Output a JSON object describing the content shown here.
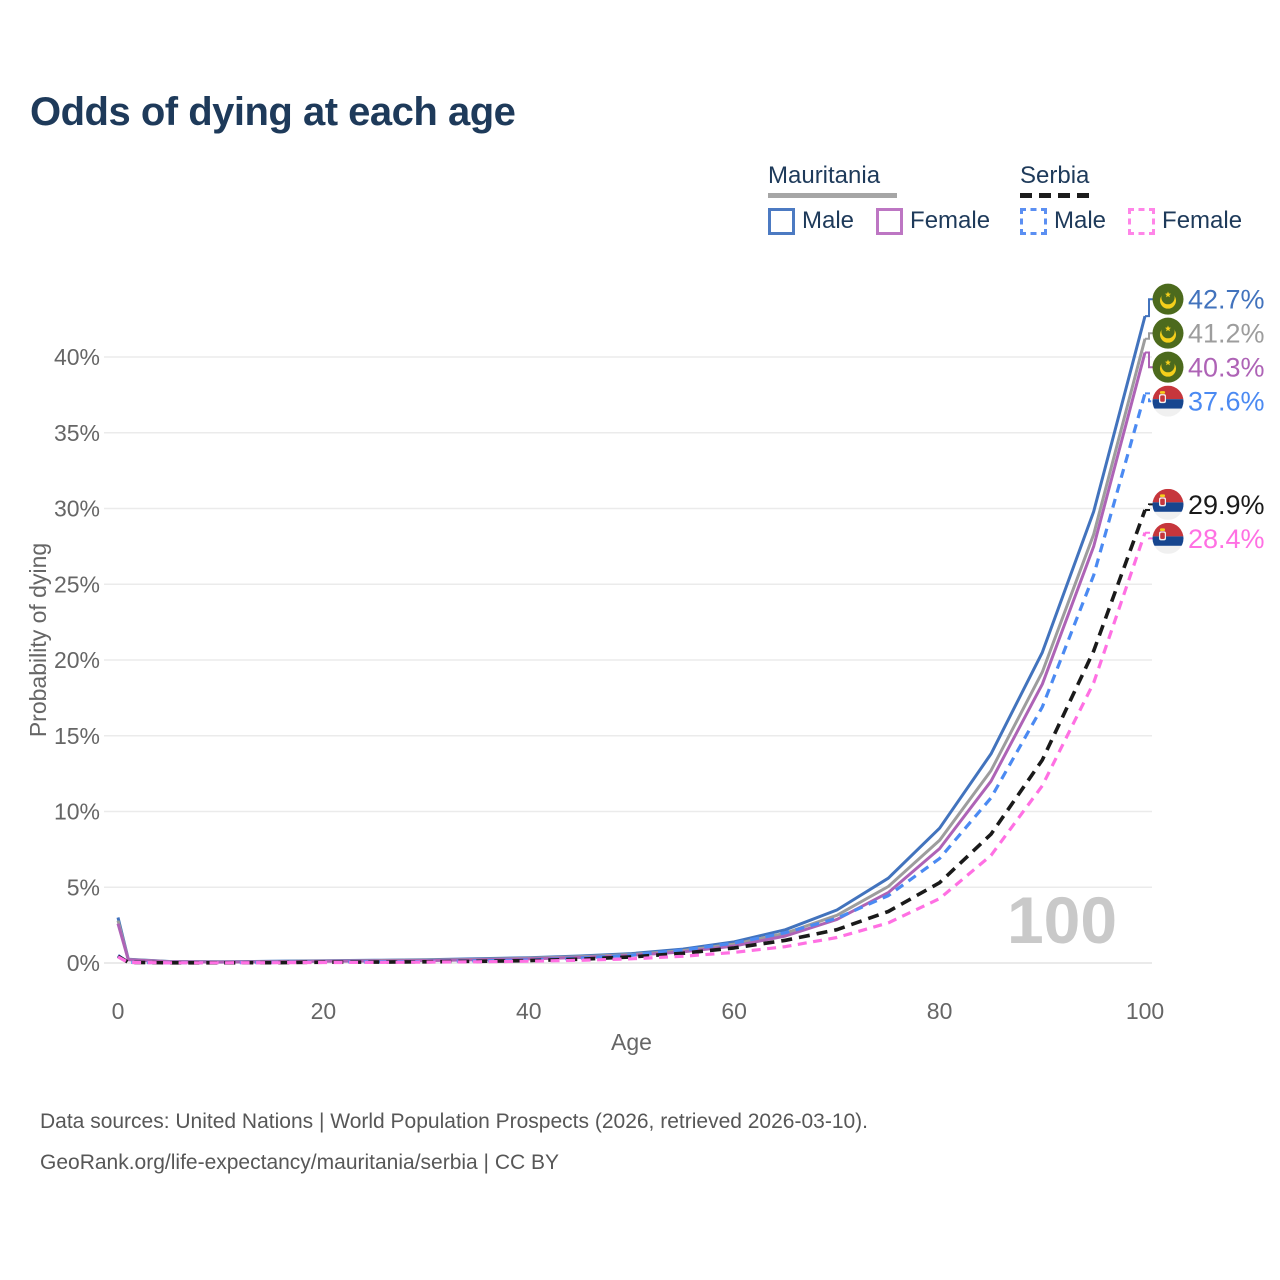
{
  "title": "Odds of dying at each age",
  "legend": {
    "groups": [
      {
        "label": "Mauritania",
        "line_style": "solid",
        "underline_color": "#a6a6a6",
        "items": [
          {
            "label": "Male",
            "color": "#4c7ac2"
          },
          {
            "label": "Female",
            "color": "#bd76c3"
          }
        ]
      },
      {
        "label": "Serbia",
        "line_style": "dashed",
        "underline_color": "#1c1c1c",
        "items": [
          {
            "label": "Male",
            "color": "#5b8ff2"
          },
          {
            "label": "Female",
            "color": "#ff85e8"
          }
        ]
      }
    ]
  },
  "chart_data": {
    "type": "line",
    "title": "Odds of dying at each age",
    "xlabel": "Age",
    "ylabel": "Probability of dying",
    "xlim": [
      0,
      100
    ],
    "ylim": [
      0,
      44
    ],
    "x_ticks": [
      0,
      20,
      40,
      60,
      80,
      100
    ],
    "y_ticks": [
      0,
      5,
      10,
      15,
      20,
      25,
      30,
      35,
      40
    ],
    "y_tick_suffix": "%",
    "grid": "horizontal",
    "watermark": "100",
    "x": [
      0,
      1,
      5,
      10,
      15,
      20,
      25,
      30,
      35,
      40,
      45,
      50,
      55,
      60,
      65,
      70,
      75,
      80,
      85,
      90,
      95,
      100
    ],
    "series": [
      {
        "name": "Mauritania Male",
        "country": "Mauritania",
        "sex": "Male",
        "color": "#4273bd",
        "dash": "solid",
        "flag": "mauritania",
        "end_label": "42.7%",
        "end_value": 42.7,
        "values": [
          3.0,
          0.25,
          0.1,
          0.08,
          0.11,
          0.15,
          0.18,
          0.22,
          0.28,
          0.35,
          0.46,
          0.62,
          0.92,
          1.4,
          2.2,
          3.5,
          5.6,
          8.9,
          13.8,
          20.5,
          29.8,
          42.7
        ]
      },
      {
        "name": "Mauritania Both sexes",
        "country": "Mauritania",
        "sex": "Both",
        "color": "#9d9d9d",
        "dash": "solid",
        "flag": "mauritania",
        "end_label": "41.2%",
        "end_value": 41.2,
        "values": [
          2.8,
          0.23,
          0.09,
          0.07,
          0.09,
          0.13,
          0.16,
          0.19,
          0.24,
          0.31,
          0.41,
          0.56,
          0.82,
          1.25,
          1.97,
          3.15,
          5.05,
          8.1,
          12.7,
          19.2,
          28.3,
          41.2
        ]
      },
      {
        "name": "Mauritania Female",
        "country": "Mauritania",
        "sex": "Female",
        "color": "#ae63b6",
        "dash": "solid",
        "flag": "mauritania",
        "end_label": "40.3%",
        "end_value": 40.3,
        "values": [
          2.6,
          0.21,
          0.08,
          0.06,
          0.08,
          0.11,
          0.13,
          0.16,
          0.21,
          0.27,
          0.36,
          0.5,
          0.73,
          1.12,
          1.78,
          2.88,
          4.65,
          7.55,
          12.0,
          18.4,
          27.5,
          40.3
        ]
      },
      {
        "name": "Serbia Male",
        "country": "Serbia",
        "sex": "Male",
        "color": "#4b8af2",
        "dash": "dashed",
        "flag": "serbia",
        "end_label": "37.6%",
        "end_value": 37.6,
        "values": [
          0.5,
          0.04,
          0.01,
          0.01,
          0.03,
          0.06,
          0.08,
          0.1,
          0.14,
          0.2,
          0.32,
          0.52,
          0.85,
          1.32,
          2.0,
          2.95,
          4.45,
          6.9,
          10.9,
          16.9,
          25.6,
          37.6
        ]
      },
      {
        "name": "Serbia Both sexes",
        "country": "Serbia",
        "sex": "Both",
        "color": "#1a1a1a",
        "dash": "dashed",
        "flag": "serbia",
        "end_label": "29.9%",
        "end_value": 29.9,
        "values": [
          0.45,
          0.04,
          0.01,
          0.01,
          0.02,
          0.05,
          0.06,
          0.08,
          0.11,
          0.16,
          0.25,
          0.4,
          0.64,
          1.0,
          1.5,
          2.2,
          3.4,
          5.3,
          8.5,
          13.4,
          20.6,
          29.9
        ]
      },
      {
        "name": "Serbia Female",
        "country": "Serbia",
        "sex": "Female",
        "color": "#ff70e3",
        "dash": "dashed",
        "flag": "serbia",
        "end_label": "28.4%",
        "end_value": 28.4,
        "values": [
          0.4,
          0.03,
          0.01,
          0.01,
          0.02,
          0.03,
          0.04,
          0.06,
          0.08,
          0.12,
          0.18,
          0.28,
          0.44,
          0.7,
          1.08,
          1.68,
          2.65,
          4.25,
          7.1,
          11.7,
          18.5,
          28.4
        ]
      }
    ]
  },
  "footer": {
    "line1": "Data sources: United Nations | World Population Prospects (2026, retrieved 2026-03-10).",
    "line2": "GeoRank.org/life-expectancy/mauritania/serbia | CC BY"
  },
  "flag_colors": {
    "mauritania_green": "#4c6a1d",
    "mauritania_gold": "#f5cf1b",
    "serbia_red": "#c6363c",
    "serbia_blue": "#17468f",
    "serbia_white": "#f0f0f0"
  }
}
